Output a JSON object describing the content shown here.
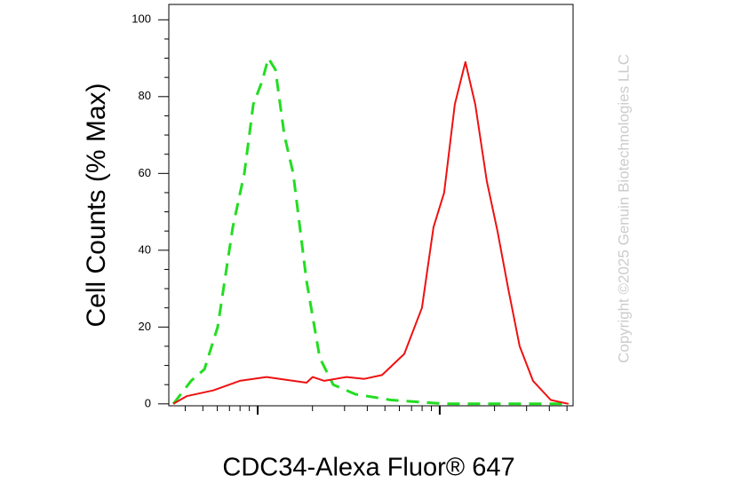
{
  "chart_data": {
    "type": "line",
    "x_label": "CDC34-Alexa Fluor® 647",
    "y_label": "Cell Counts (% Max)",
    "watermark": "Copyright ©2025 Genuin Biotechnologies LLC",
    "log_x": true,
    "xlim": [
      325,
      54000
    ],
    "xticks": [
      400,
      500,
      600,
      700,
      800,
      900,
      1000,
      2000,
      3000,
      4000,
      5000,
      6000,
      7000,
      8000,
      9000,
      10000,
      20000,
      30000,
      40000,
      50000
    ],
    "ylim": [
      -0.5,
      104
    ],
    "yticks": [
      0,
      20,
      40,
      60,
      80,
      100
    ],
    "series": [
      {
        "color": "#22dd22",
        "dash": true,
        "x": [
          344,
          385,
          431,
          510,
          603,
          730,
          845,
          946,
          1058,
          1144,
          1252,
          1401,
          1567,
          1854,
          2193,
          2599,
          3441,
          5396,
          10570,
          50930
        ],
        "values": [
          0,
          3,
          6,
          9,
          20,
          46,
          60,
          78,
          84,
          90,
          87,
          70,
          60,
          32,
          12,
          5,
          2.5,
          1,
          0,
          0
        ]
      },
      {
        "color": "#ee1111",
        "dash": false,
        "x": [
          344,
          407,
          570,
          798,
          1119,
          1567,
          1854,
          2005,
          2321,
          3076,
          3850,
          4819,
          6383,
          7983,
          9243,
          10570,
          12100,
          13840,
          15670,
          18140,
          20750,
          23770,
          27490,
          32520,
          40740,
          50930
        ],
        "values": [
          0,
          2,
          3.5,
          6,
          7,
          6,
          5.5,
          7,
          6,
          7,
          6.5,
          7.5,
          13,
          25,
          46,
          55,
          78,
          89,
          78,
          58,
          45,
          30,
          15,
          6,
          1,
          0
        ]
      }
    ]
  }
}
